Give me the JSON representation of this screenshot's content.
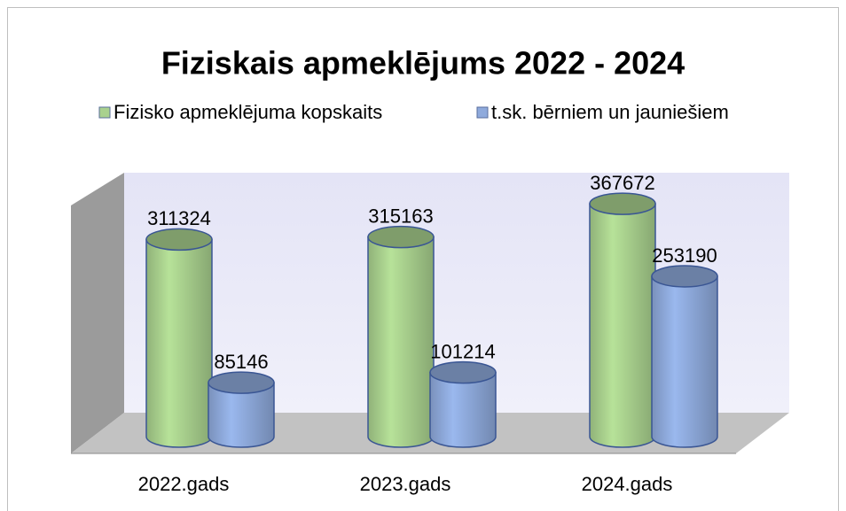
{
  "chart_data": {
    "type": "bar3d",
    "title": "Fiziskais apmeklējums 2022 - 2024",
    "categories": [
      "2022.gads",
      "2023.gads",
      "2024.gads"
    ],
    "series": [
      {
        "name": "Fizisko apmeklējuma kopskaits",
        "color": "#a9d18e",
        "values": [
          311324,
          315163,
          367672
        ]
      },
      {
        "name": "t.sk. bērniem un jauniešiem",
        "color": "#8faadc",
        "values": [
          85146,
          101214,
          253190
        ]
      }
    ],
    "ylim": [
      0,
      400000
    ],
    "legend": "top"
  }
}
